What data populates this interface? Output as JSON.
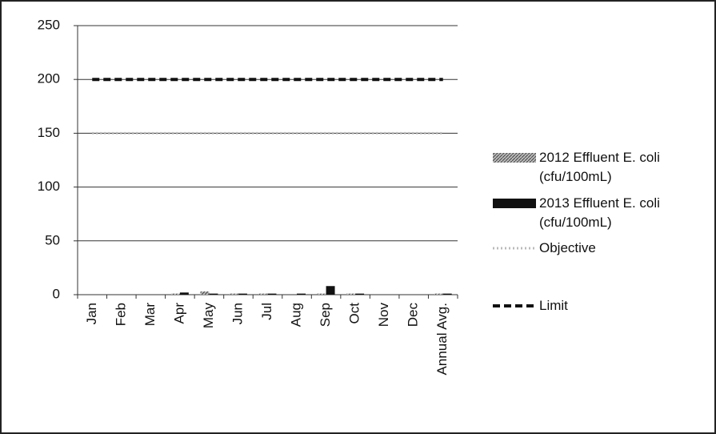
{
  "chart_data": {
    "type": "bar",
    "categories": [
      "Jan",
      "Feb",
      "Mar",
      "Apr",
      "May",
      "Jun",
      "Jul",
      "Aug",
      "Sep",
      "Oct",
      "Nov",
      "Dec",
      "Annual Avg."
    ],
    "series": [
      {
        "name": "2012 Effluent E. coli (cfu/100mL)",
        "type": "bar",
        "color": "#999999",
        "values": [
          0,
          0,
          0,
          1,
          3,
          1,
          1,
          0,
          1,
          1,
          0,
          0,
          1
        ]
      },
      {
        "name": "2013 Effluent E. coli (cfu/100mL)",
        "type": "bar",
        "color": "#111111",
        "values": [
          0,
          0,
          0,
          2,
          1,
          1,
          1,
          1,
          8,
          1,
          0,
          0,
          1
        ]
      },
      {
        "name": "Objective",
        "type": "line",
        "color": "#bbbbbb",
        "values": [
          150,
          150,
          150,
          150,
          150,
          150,
          150,
          150,
          150,
          150,
          150,
          150,
          150
        ]
      },
      {
        "name": "Limit",
        "type": "line",
        "color": "#111111",
        "values": [
          200,
          200,
          200,
          200,
          200,
          200,
          200,
          200,
          200,
          200,
          200,
          200,
          200
        ]
      }
    ],
    "ylim": [
      0,
      250
    ],
    "yticks": [
      0,
      50,
      100,
      150,
      200,
      250
    ],
    "grid": true,
    "legend": "right"
  }
}
